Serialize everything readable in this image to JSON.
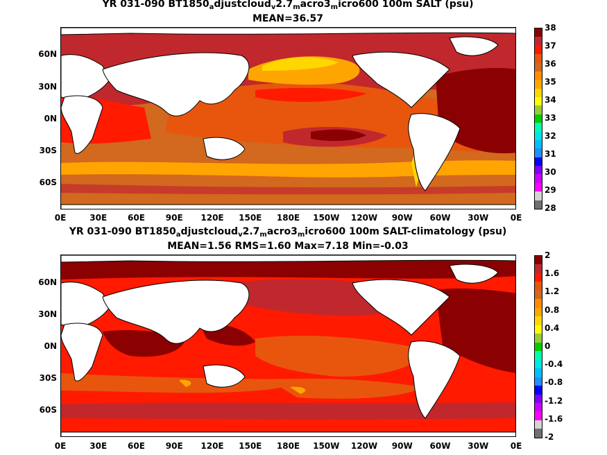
{
  "panel1": {
    "title_parts": [
      "YR 031-090 BT1850",
      "a",
      "djustcloud",
      "v",
      "2.7",
      "m",
      "acro3",
      "m",
      "icro600 100m SALT (psu)"
    ],
    "subtitle": "MEAN=36.57",
    "colorbar_labels": [
      "38",
      "37",
      "36",
      "35",
      "34",
      "33",
      "32",
      "31",
      "30",
      "29",
      "28"
    ],
    "colorbar_colors": [
      "#8b0000",
      "#c0282d",
      "#ff1a00",
      "#e8560e",
      "#d2691e",
      "#ff8c00",
      "#ffa500",
      "#ffd700",
      "#ffff00",
      "#9acd32",
      "#00cc00",
      "#00ffaa",
      "#00e5e5",
      "#00bfff",
      "#1e90ff",
      "#0000ff",
      "#8000ff",
      "#cc00ff",
      "#ff00ff",
      "#d3d3d3",
      "#707070"
    ]
  },
  "panel2": {
    "title_parts": [
      "YR 031-090 BT1850",
      "a",
      "djustcloud",
      "v",
      "2.7",
      "m",
      "acro3",
      "m",
      "icro600 100m SALT-climatology (psu)"
    ],
    "subtitle": "MEAN=1.56   RMS=1.60   Max=7.18   Min=-0.03",
    "colorbar_labels": [
      "2",
      "1.6",
      "1.2",
      "0.8",
      "0.4",
      "0",
      "-0.4",
      "-0.8",
      "-1.2",
      "-1.6",
      "-2"
    ],
    "colorbar_colors": [
      "#8b0000",
      "#c0282d",
      "#ff1a00",
      "#e8560e",
      "#d2691e",
      "#ff8c00",
      "#ffa500",
      "#ffd700",
      "#ffff00",
      "#9acd32",
      "#00cc00",
      "#00ffaa",
      "#00e5e5",
      "#00bfff",
      "#1e90ff",
      "#0000ff",
      "#8000ff",
      "#cc00ff",
      "#ff00ff",
      "#d3d3d3",
      "#707070"
    ]
  },
  "lat_labels": [
    "60N",
    "30N",
    "0N",
    "30S",
    "60S"
  ],
  "lon_labels": [
    "0E",
    "30E",
    "60E",
    "90E",
    "120E",
    "150E",
    "180E",
    "150W",
    "120W",
    "90W",
    "60W",
    "30W",
    "0E"
  ]
}
